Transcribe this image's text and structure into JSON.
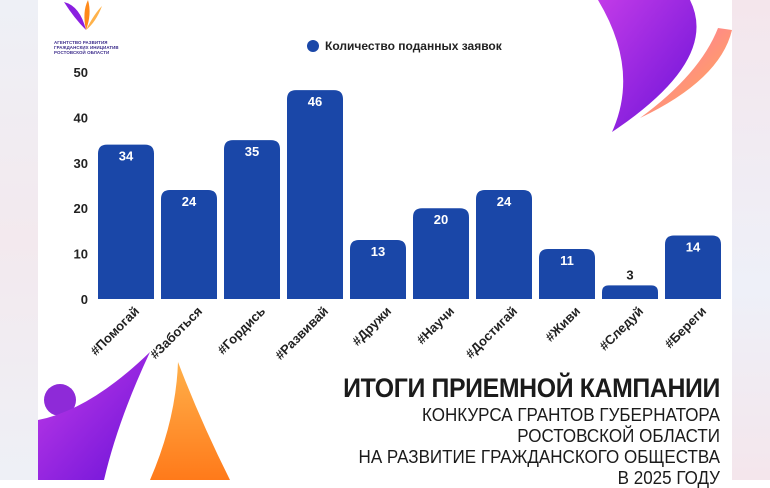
{
  "logo": {
    "text_lines": [
      "Агентство развития",
      "гражданских инициатив",
      "Ростовской области"
    ]
  },
  "chart_data": {
    "type": "bar",
    "categories": [
      "#Помогай",
      "#Заботься",
      "#Гордись",
      "#Развивай",
      "#Дружи",
      "#Научи",
      "#Достигай",
      "#Живи",
      "#Следуй",
      "#Береги"
    ],
    "series": [
      {
        "name": "Количество поданных заявок",
        "values": [
          34,
          24,
          35,
          46,
          13,
          20,
          24,
          11,
          3,
          14
        ]
      }
    ],
    "ylim": [
      0,
      50
    ],
    "yticks": [
      0,
      10,
      20,
      30,
      40,
      50
    ],
    "grid": false,
    "legend": "top-center",
    "bar_color": "#1a47a8"
  },
  "heading": {
    "title": "ИТОГИ ПРИЕМНОЙ КАМПАНИИ",
    "lines": [
      "КОНКУРСА ГРАНТОВ ГУБЕРНАТОРА",
      "РОСТОВСКОЙ ОБЛАСТИ",
      "НА РАЗВИТИЕ ГРАЖДАНСКОГО ОБЩЕСТВА",
      "В 2025 ГОДУ"
    ]
  },
  "colors": {
    "accent_purple": "#8a1fe0",
    "accent_orange": "#ff8a1a",
    "bar": "#1a47a8"
  }
}
